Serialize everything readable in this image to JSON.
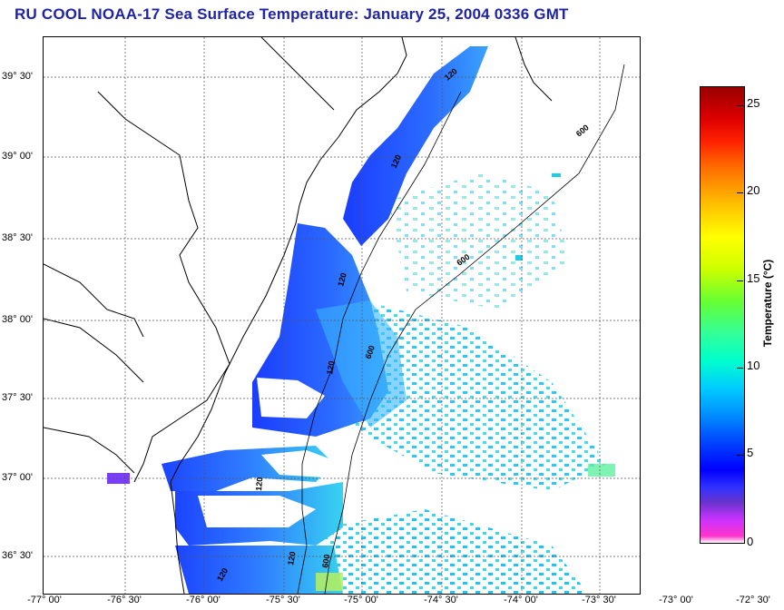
{
  "title": "RU COOL  NOAA-17  Sea Surface Temperature:  January 25, 2004 0336 GMT",
  "map": {
    "lat_labels": [
      {
        "text": "39° 30'"
      },
      {
        "text": "39° 00'"
      },
      {
        "text": "38° 30'"
      },
      {
        "text": "38° 00'"
      },
      {
        "text": "37° 30'"
      },
      {
        "text": "37° 00'"
      },
      {
        "text": "36° 30'"
      }
    ],
    "lon_labels": [
      {
        "text": "-77° 00'"
      },
      {
        "text": "-76° 30'"
      },
      {
        "text": "-76° 00'"
      },
      {
        "text": "-75° 30'"
      },
      {
        "text": "-75° 00'"
      },
      {
        "text": "-74° 30'"
      },
      {
        "text": "-74° 00'"
      },
      {
        "text": "-73° 30'"
      },
      {
        "text": "-73° 00'"
      },
      {
        "text": "-72° 30'"
      }
    ],
    "contour_labels": [
      "120",
      "600"
    ]
  },
  "colorbar": {
    "label": "Temperature (°C)",
    "ticks": [
      "25",
      "20",
      "15",
      "10",
      "5",
      "0"
    ],
    "min": 0,
    "max": 26
  }
}
